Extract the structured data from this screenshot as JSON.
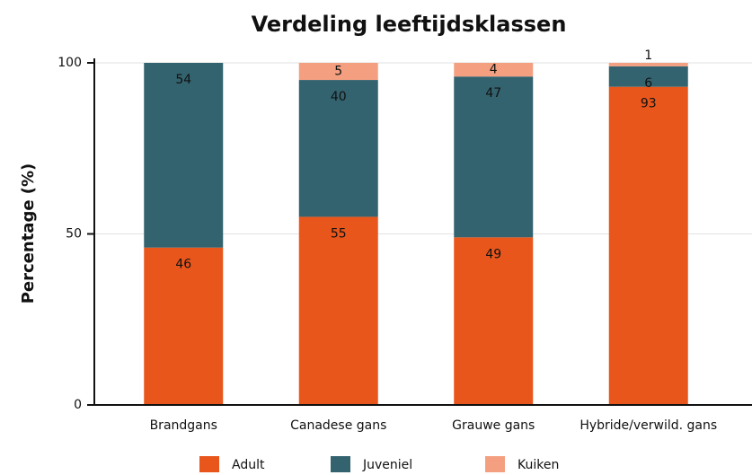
{
  "chart_data": {
    "type": "stacked_bar",
    "title": "Verdeling leeftijdsklassen",
    "y_label": "Percentage  (%)",
    "categories": [
      "Brandgans",
      "Canadese gans",
      "Grauwe gans",
      "Hybride/verwild. gans"
    ],
    "series": [
      {
        "name": "Adult",
        "color": "#e8561c",
        "values": [
          46,
          55,
          49,
          93
        ]
      },
      {
        "name": "Juveniel",
        "color": "#33636f",
        "values": [
          54,
          40,
          47,
          6
        ]
      },
      {
        "name": "Kuiken",
        "color": "#f4a080",
        "values": [
          0,
          5,
          4,
          1
        ]
      }
    ],
    "ylim": [
      0,
      100
    ],
    "yticks": [
      0,
      50,
      100
    ],
    "grid": true
  }
}
